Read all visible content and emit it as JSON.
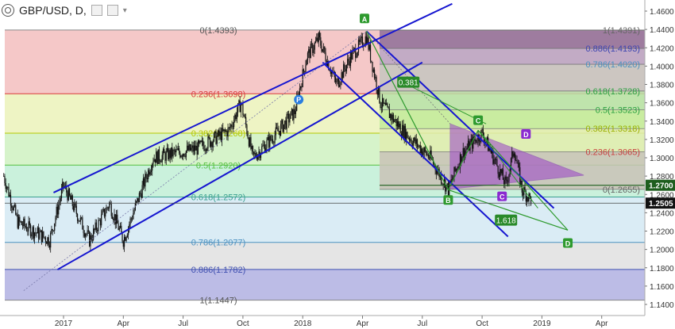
{
  "symbol": "GBP/USD, D,",
  "header_icons": [
    "settings-icon",
    "eye-icon",
    "chevron-down-icon"
  ],
  "chart_data": {
    "type": "candlestick",
    "ylim": [
      1.135,
      1.465
    ],
    "x_ticks": [
      "2017",
      "Apr",
      "Jul",
      "Oct",
      "2018",
      "Apr",
      "Jul",
      "Oct",
      "2019",
      "Apr"
    ],
    "y_ticks": [
      "1.4600",
      "1.4400",
      "1.4200",
      "1.4000",
      "1.3800",
      "1.3600",
      "1.3400",
      "1.3200",
      "1.3000",
      "1.2800",
      "1.2600",
      "1.2400",
      "1.2200",
      "1.2000",
      "1.1800",
      "1.1600",
      "1.1400"
    ],
    "y_tick_values": [
      1.46,
      1.44,
      1.42,
      1.4,
      1.38,
      1.36,
      1.34,
      1.32,
      1.3,
      1.28,
      1.26,
      1.24,
      1.22,
      1.2,
      1.18,
      1.16,
      1.14
    ],
    "price_labels": [
      {
        "text": "1.2700",
        "value": 1.27,
        "bg": "#1e5e1e"
      },
      {
        "text": "1.2505",
        "value": 1.2505,
        "bg": "#111111"
      }
    ],
    "fib_left": {
      "labels": [
        "0(1.4393)",
        "0.236(1.3698)",
        "0.382(1.3268)",
        "0.5(1.2920)",
        "0.618(1.2572)",
        "0.786(1.2077)",
        "0.886(1.1782)",
        "1(1.1447)"
      ],
      "values": [
        1.4393,
        1.3698,
        1.3268,
        1.292,
        1.2572,
        1.2077,
        1.1782,
        1.1447
      ],
      "line_colors": [
        "#888888",
        "#d93a3a",
        "#b4c800",
        "#55c040",
        "#3aa090",
        "#4a90c0",
        "#4050b0",
        "#888888"
      ],
      "fill_colors": [
        "#f1b5b5",
        "#e8f0b0",
        "#c8efb8",
        "#b8ecd0",
        "#cde6f2",
        "#dcdcdc",
        "#a6a6de"
      ]
    },
    "fib_right": {
      "labels": [
        "1(1.4391)",
        "0.886(1.4193)",
        "0.786(1.4020)",
        "0.618(1.3728)",
        "0.5(1.3523)",
        "0.382(1.3318)",
        "0.236(1.3065)",
        "0(1.2655)"
      ],
      "values": [
        1.4391,
        1.4193,
        1.402,
        1.3728,
        1.3523,
        1.3318,
        1.3065,
        1.2655
      ],
      "label_colors": [
        "#666666",
        "#3d45b0",
        "#4a90c0",
        "#2aa040",
        "#2aa040",
        "#9ab000",
        "#c84040",
        "#666666"
      ],
      "fill_colors": [
        "#8e6e98",
        "#b9a6c4",
        "#c4c6c0",
        "#b6e0a8",
        "#c2ea9a",
        "#e0ecb0",
        "#c9c2b6"
      ]
    },
    "pattern_points": [
      {
        "name": "A",
        "color": "#2e9a2e",
        "value": 1.4375
      },
      {
        "name": "B",
        "color": "#2e9a2e",
        "value": 1.2613
      },
      {
        "name": "C",
        "color": "#2e9a2e",
        "value": 1.3298
      },
      {
        "name": "D",
        "color": "#2e9a2e",
        "value": 1.2205
      }
    ],
    "abcd_labels": [
      {
        "name": "C",
        "color": "#8a2ad0"
      },
      {
        "name": "D",
        "color": "#8a2ad0"
      }
    ],
    "ratio_labels": [
      "0.381",
      "1.618"
    ],
    "pivot_label": "P",
    "colors": {
      "channel": "#1515d0",
      "candles": "#111111",
      "triangle": "#9a40c8",
      "pattern_lines": "#2e9a2e",
      "pivot": "#2a7ee0"
    }
  }
}
